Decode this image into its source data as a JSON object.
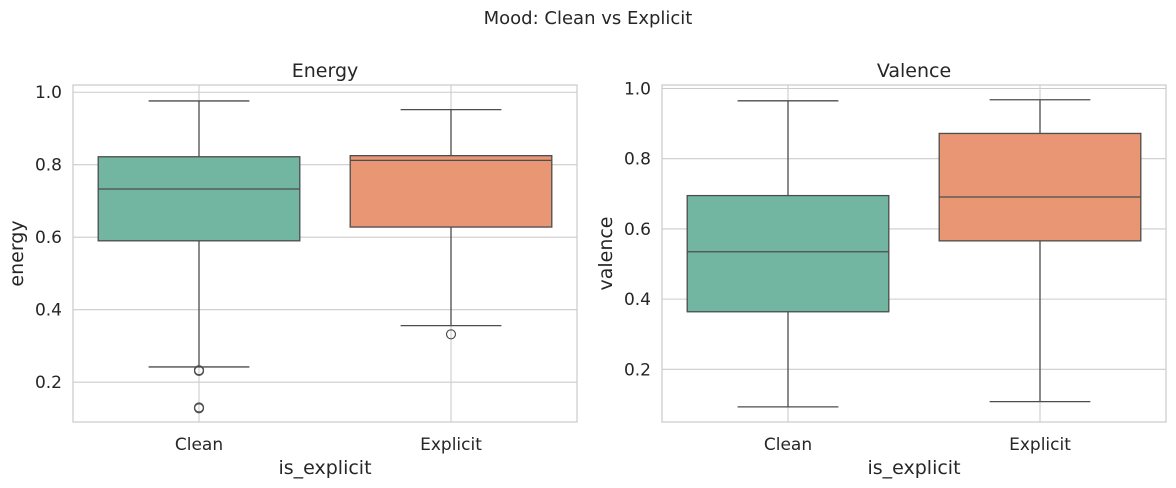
{
  "suptitle": "Mood: Clean vs Explicit",
  "colors": {
    "Clean": "#72b6a1",
    "Explicit": "#e99675"
  },
  "chart_data": [
    {
      "type": "box",
      "title": "Energy",
      "xlabel": "is_explicit",
      "ylabel": "energy",
      "categories": [
        "Clean",
        "Explicit"
      ],
      "ylim": [
        0.09,
        1.02
      ],
      "yticks": [
        0.2,
        0.4,
        0.6,
        0.8,
        1.0
      ],
      "ytick_labels": [
        "0.2",
        "0.4",
        "0.6",
        "0.8",
        "1.0"
      ],
      "grid": true,
      "boxes": [
        {
          "category": "Clean",
          "whislo": 0.242,
          "q1": 0.59,
          "median": 0.733,
          "q3": 0.822,
          "whishi": 0.976,
          "fliers": [
            0.233,
            0.231,
            0.13,
            0.128
          ]
        },
        {
          "category": "Explicit",
          "whislo": 0.356,
          "q1": 0.628,
          "median": 0.812,
          "q3": 0.825,
          "whishi": 0.952,
          "fliers": [
            0.332
          ]
        }
      ]
    },
    {
      "type": "box",
      "title": "Valence",
      "xlabel": "is_explicit",
      "ylabel": "valence",
      "categories": [
        "Clean",
        "Explicit"
      ],
      "ylim": [
        0.05,
        1.01
      ],
      "yticks": [
        0.2,
        0.4,
        0.6,
        0.8,
        1.0
      ],
      "ytick_labels": [
        "0.2",
        "0.4",
        "0.6",
        "0.8",
        "1.0"
      ],
      "grid": true,
      "boxes": [
        {
          "category": "Clean",
          "whislo": 0.093,
          "q1": 0.364,
          "median": 0.535,
          "q3": 0.695,
          "whishi": 0.965,
          "fliers": []
        },
        {
          "category": "Explicit",
          "whislo": 0.108,
          "q1": 0.566,
          "median": 0.691,
          "q3": 0.872,
          "whishi": 0.968,
          "fliers": []
        }
      ]
    }
  ]
}
